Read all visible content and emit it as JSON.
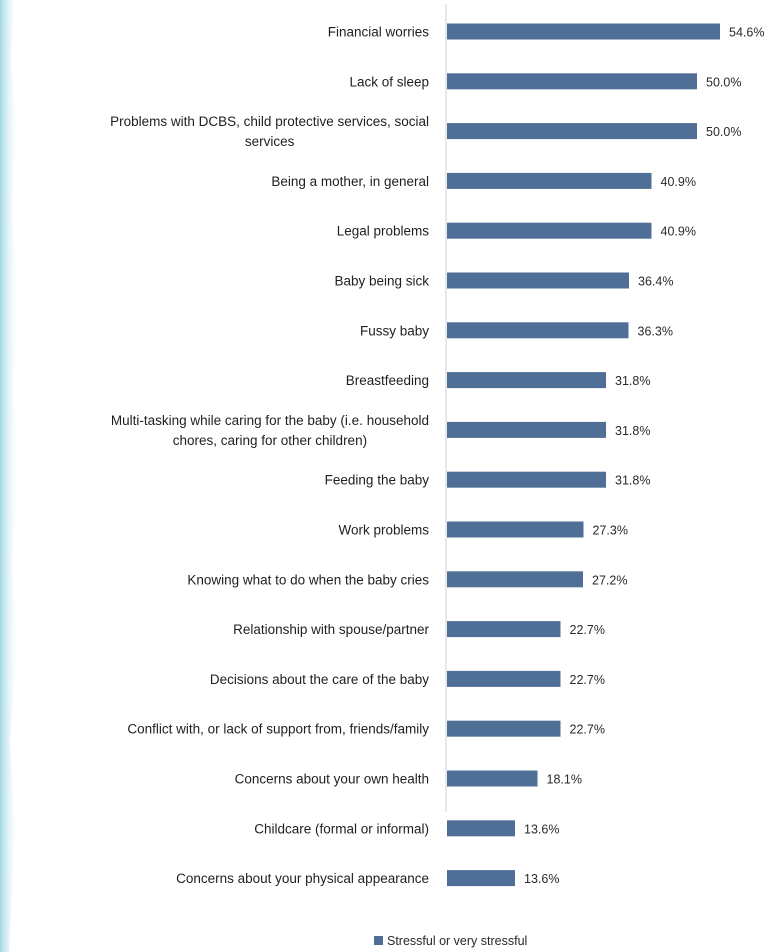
{
  "chart_data": {
    "type": "bar",
    "orientation": "horizontal",
    "categories": [
      [
        "Financial worries"
      ],
      [
        "Lack of sleep"
      ],
      [
        "Problems with DCBS, child protective services, social",
        "services"
      ],
      [
        "Being a mother, in general"
      ],
      [
        "Legal problems"
      ],
      [
        "Baby being sick"
      ],
      [
        "Fussy baby"
      ],
      [
        "Breastfeeding"
      ],
      [
        "Multi-tasking while caring for the baby (i.e. household",
        "chores, caring for other children)"
      ],
      [
        "Feeding the baby"
      ],
      [
        "Work problems"
      ],
      [
        "Knowing what to do when the baby cries"
      ],
      [
        "Relationship with spouse/partner"
      ],
      [
        "Decisions about the care of the baby"
      ],
      [
        "Conflict with, or lack of support from, friends/family"
      ],
      [
        "Concerns about your own health"
      ],
      [
        "Childcare (formal or informal)"
      ],
      [
        "Concerns about your physical appearance"
      ]
    ],
    "series": [
      {
        "name": "Stressful or very stressful",
        "color": "#4f6f96",
        "values": [
          54.6,
          50.0,
          50.0,
          40.9,
          40.9,
          36.4,
          36.3,
          31.8,
          31.8,
          31.8,
          27.3,
          27.2,
          22.7,
          22.7,
          22.7,
          18.1,
          13.6,
          13.6
        ],
        "labels": [
          "54.6%",
          "50.0%",
          "50.0%",
          "40.9%",
          "40.9%",
          "36.4%",
          "36.3%",
          "31.8%",
          "31.8%",
          "31.8%",
          "27.3%",
          "27.2%",
          "22.7%",
          "22.7%",
          "22.7%",
          "18.1%",
          "13.6%",
          "13.6%"
        ]
      }
    ],
    "xlim": [
      0,
      60
    ],
    "grid": false,
    "legend_position": "bottom-center",
    "title": "",
    "xlabel": "",
    "ylabel": ""
  },
  "colors": {
    "axis": "#d2d2d2",
    "deco": "#c8e8ee"
  }
}
